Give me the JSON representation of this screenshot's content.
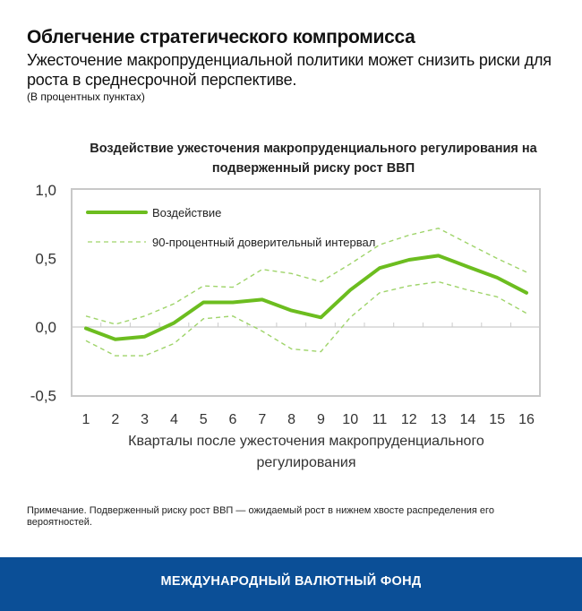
{
  "header": {
    "title": "Облегчение стратегического компромисса",
    "subtitle": "Ужесточение макропруденциальной политики может снизить риски для роста в среднесрочной перспективе.",
    "units": "(В процентных пунктах)"
  },
  "chart": {
    "title": "Воздействие ужесточения макропруденциального регулирования на подверженный риску рост ВВП",
    "xlabel_line1": "Кварталы после ужесточения макропруденциального",
    "xlabel_line2": "регулирования",
    "legend": {
      "impact": "Воздействие",
      "interval": "90-процентный доверительный интервал"
    },
    "colors": {
      "line": "#6cbd1f",
      "dashed": "#9fd46a",
      "axis": "#cccccc"
    }
  },
  "note": "Примечание. Подверженный риску рост ВВП — ожидаемый рост в нижнем хвосте распределения его вероятностей.",
  "footer": {
    "org": "МЕЖДУНАРОДНЫЙ ВАЛЮТНЫЙ ФОНД"
  },
  "chart_data": {
    "type": "line",
    "title": "Воздействие ужесточения макропруденциального регулирования на подверженный риску рост ВВП",
    "xlabel": "Кварталы после ужесточения макропруденциального регулирования",
    "ylabel": "",
    "x": [
      1,
      2,
      3,
      4,
      5,
      6,
      7,
      8,
      9,
      10,
      11,
      12,
      13,
      14,
      15,
      16
    ],
    "y_ticks": [
      "1,0",
      "0,5",
      "0,0",
      "-0,5"
    ],
    "ylim": [
      -0.5,
      1.0
    ],
    "legend_position": "top-left inside",
    "series": [
      {
        "name": "Воздействие",
        "style": "solid",
        "values": [
          -0.01,
          -0.09,
          -0.07,
          0.03,
          0.18,
          0.18,
          0.2,
          0.12,
          0.07,
          0.27,
          0.43,
          0.49,
          0.52,
          0.44,
          0.36,
          0.25
        ]
      },
      {
        "name": "90-процентный доверительный интервал (верхняя граница)",
        "style": "dashed",
        "values": [
          0.08,
          0.02,
          0.08,
          0.17,
          0.3,
          0.29,
          0.42,
          0.39,
          0.33,
          0.46,
          0.6,
          0.67,
          0.72,
          0.61,
          0.5,
          0.4
        ]
      },
      {
        "name": "90-процентный доверительный интервал (нижняя граница)",
        "style": "dashed",
        "values": [
          -0.1,
          -0.21,
          -0.21,
          -0.12,
          0.06,
          0.08,
          -0.03,
          -0.16,
          -0.18,
          0.07,
          0.25,
          0.3,
          0.33,
          0.27,
          0.22,
          0.1
        ]
      }
    ]
  }
}
